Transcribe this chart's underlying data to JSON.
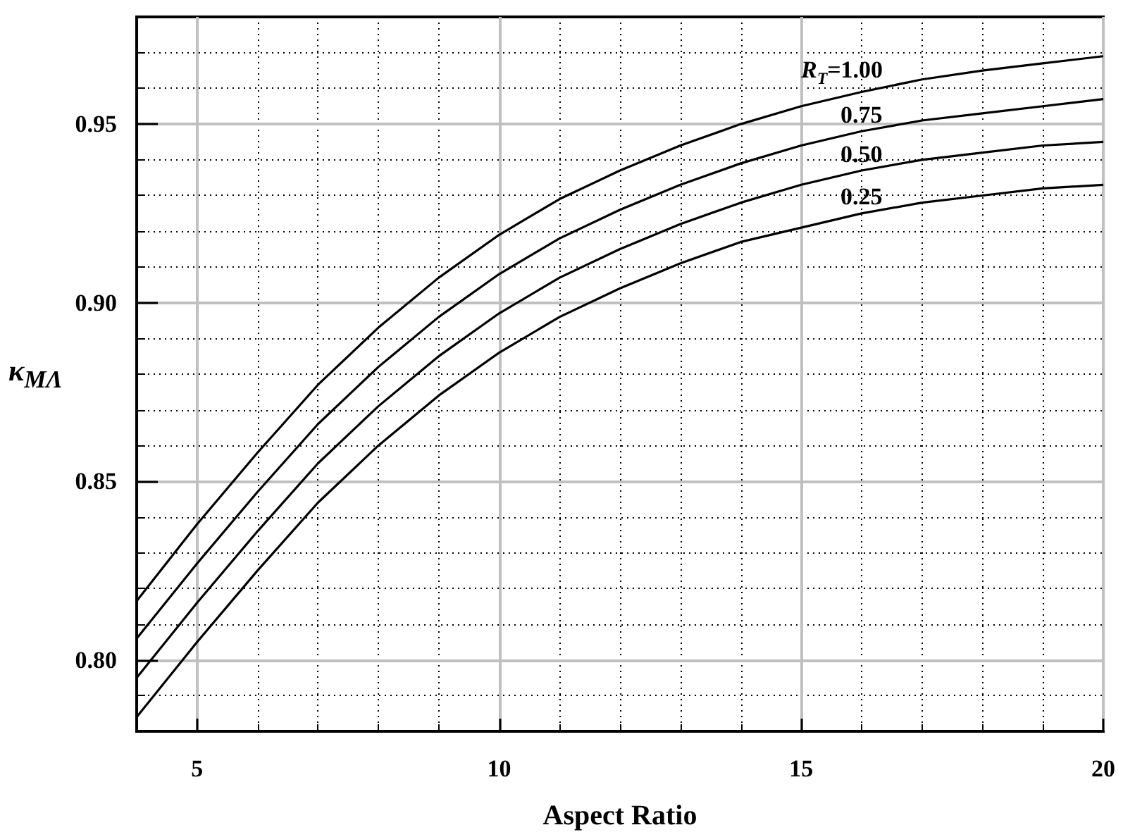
{
  "chart_data": {
    "type": "line",
    "xlabel": "Aspect Ratio",
    "ylabel": "κ$_{MΛ}$",
    "x": [
      4,
      5,
      6,
      7,
      8,
      9,
      10,
      11,
      12,
      13,
      14,
      15,
      16,
      17,
      18,
      19,
      20
    ],
    "xlim": [
      4,
      20
    ],
    "xticks": [
      5,
      10,
      15,
      20
    ],
    "ylim": [
      0.78,
      0.98
    ],
    "yticks": [
      {
        "value": 0.8,
        "label": "0.80"
      },
      {
        "value": 0.85,
        "label": "0.85"
      },
      {
        "value": 0.9,
        "label": "0.90"
      },
      {
        "value": 0.95,
        "label": "0.95"
      }
    ],
    "grid": true,
    "legend": false,
    "marker": "none",
    "line_style": "solid",
    "series": [
      {
        "name": "R$_{T}$=1.00",
        "color": "#000000",
        "values": [
          0.8165,
          0.838,
          0.858,
          0.877,
          0.893,
          0.907,
          0.919,
          0.929,
          0.937,
          0.944,
          0.95,
          0.955,
          0.959,
          0.9625,
          0.965,
          0.967,
          0.969
        ]
      },
      {
        "name": "0.75",
        "color": "#000000",
        "values": [
          0.806,
          0.827,
          0.847,
          0.866,
          0.882,
          0.896,
          0.908,
          0.918,
          0.926,
          0.933,
          0.939,
          0.944,
          0.948,
          0.951,
          0.953,
          0.955,
          0.957
        ]
      },
      {
        "name": "0.50",
        "color": "#000000",
        "values": [
          0.795,
          0.816,
          0.836,
          0.855,
          0.871,
          0.885,
          0.897,
          0.907,
          0.915,
          0.922,
          0.928,
          0.933,
          0.937,
          0.94,
          0.942,
          0.944,
          0.945
        ]
      },
      {
        "name": "0.25",
        "color": "#000000",
        "values": [
          0.784,
          0.805,
          0.825,
          0.844,
          0.86,
          0.874,
          0.886,
          0.896,
          0.904,
          0.911,
          0.917,
          0.921,
          0.925,
          0.928,
          0.93,
          0.932,
          0.933
        ]
      }
    ]
  }
}
